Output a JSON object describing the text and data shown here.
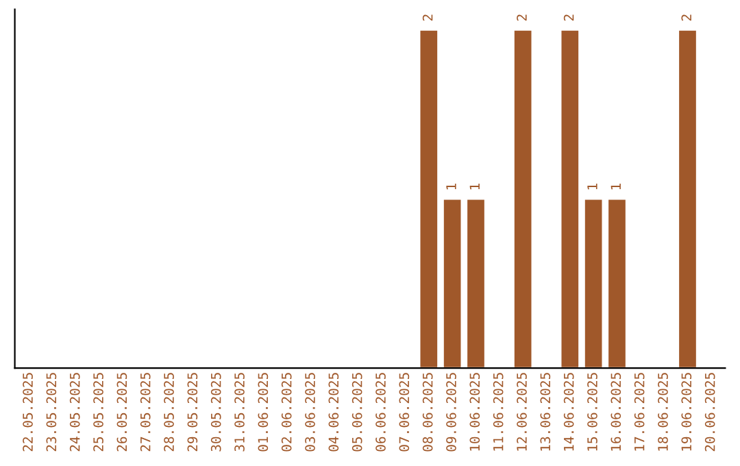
{
  "chart_data": {
    "type": "bar",
    "categories": [
      "22.05.2025",
      "23.05.2025",
      "24.05.2025",
      "25.05.2025",
      "26.05.2025",
      "27.05.2025",
      "28.05.2025",
      "29.05.2025",
      "30.05.2025",
      "31.05.2025",
      "01.06.2025",
      "02.06.2025",
      "03.06.2025",
      "04.06.2025",
      "05.06.2025",
      "06.06.2025",
      "07.06.2025",
      "08.06.2025",
      "09.06.2025",
      "10.06.2025",
      "11.06.2025",
      "12.06.2025",
      "13.06.2025",
      "14.06.2025",
      "15.06.2025",
      "16.06.2025",
      "17.06.2025",
      "18.06.2025",
      "19.06.2025",
      "20.06.2025"
    ],
    "values": [
      null,
      null,
      null,
      null,
      null,
      null,
      null,
      null,
      null,
      null,
      null,
      null,
      null,
      null,
      null,
      null,
      null,
      2,
      1,
      1,
      null,
      2,
      null,
      2,
      1,
      1,
      null,
      null,
      2,
      null
    ],
    "data_labels": true,
    "color": "#a0582a",
    "grid": false,
    "legend": false,
    "tick_labels": "x"
  }
}
